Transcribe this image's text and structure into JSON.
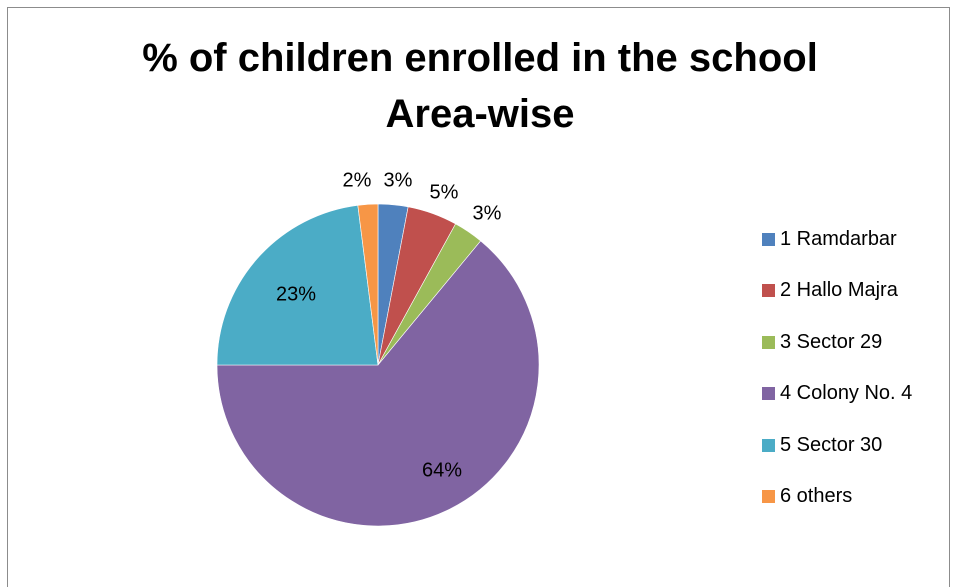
{
  "chart_data": {
    "type": "pie",
    "title": "% of children enrolled in the school Area-wise",
    "title_lines": [
      "% of children enrolled in the school",
      "Area-wise"
    ],
    "categories": [
      "1 Ramdarbar",
      "2 Hallo Majra",
      "3 Sector 29",
      "4 Colony No. 4",
      "5 Sector 30",
      "6 others"
    ],
    "values": [
      3,
      5,
      3,
      64,
      23,
      2
    ],
    "data_labels": [
      "3%",
      "5%",
      "3%",
      "64%",
      "23%",
      "2%"
    ],
    "colors": [
      "#4f81bd",
      "#c0504d",
      "#9bbb59",
      "#8064a2",
      "#4bacc6",
      "#f79646"
    ],
    "legend_position": "right",
    "start_angle": "top (12 o'clock), clockwise"
  }
}
